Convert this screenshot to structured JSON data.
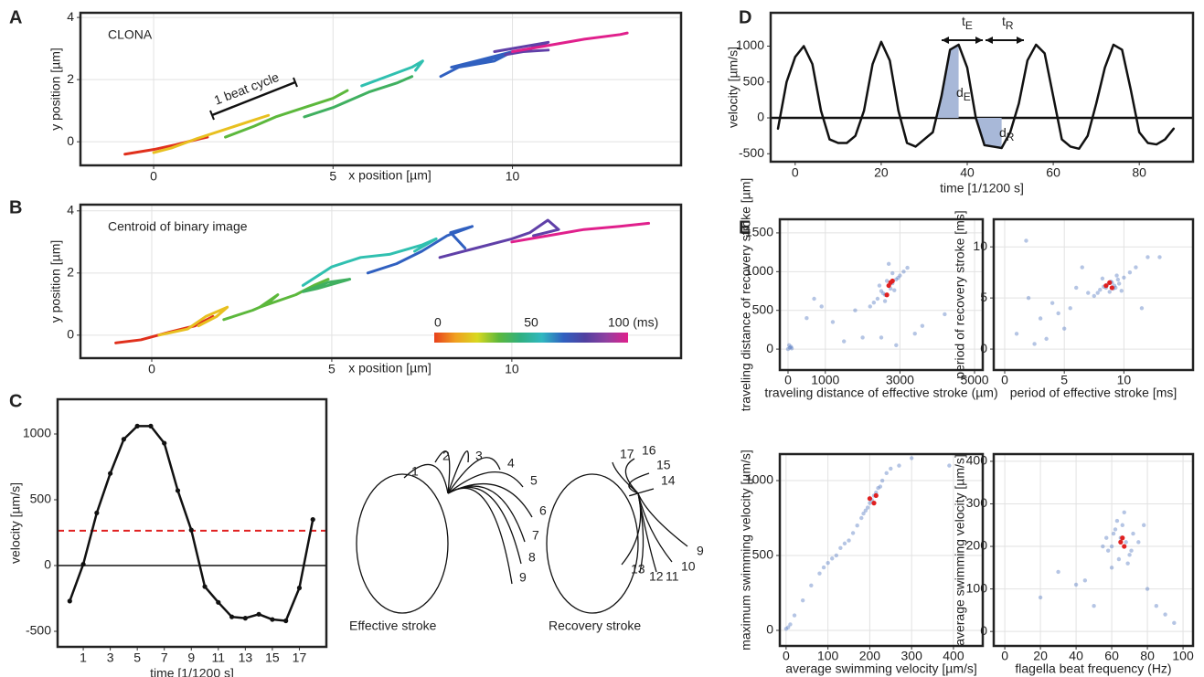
{
  "chart_data": [
    {
      "type": "line",
      "panel": "A",
      "annotation": "CLONA",
      "note": "1 beat cycle",
      "xlabel": "x position [µm]",
      "ylabel": "y position [µm]",
      "xlim": [
        -2.04,
        14.7
      ],
      "ylim": [
        -0.76,
        4.15
      ],
      "xticks": [
        0,
        5,
        10
      ],
      "yticks": [
        0,
        2,
        4
      ],
      "grid": true,
      "series": [
        {
          "color": "#e0301c",
          "x": [
            -0.8,
            0,
            0.6,
            1.3,
            1.5
          ],
          "y": [
            -0.4,
            -0.25,
            -0.1,
            0.1,
            0.15
          ]
        },
        {
          "color": "#e8c020",
          "x": [
            0,
            0.5,
            1.2,
            2.0,
            2.8,
            3.2
          ],
          "y": [
            -0.35,
            -0.2,
            0.1,
            0.4,
            0.7,
            0.85
          ]
        },
        {
          "color": "#5cb83c",
          "x": [
            2.0,
            2.8,
            3.4,
            4.2,
            5.0,
            5.4
          ],
          "y": [
            0.15,
            0.5,
            0.8,
            1.1,
            1.4,
            1.65
          ]
        },
        {
          "color": "#40b060",
          "x": [
            4.2,
            5.0,
            6.0,
            6.8,
            7.2
          ],
          "y": [
            0.8,
            1.1,
            1.6,
            1.9,
            2.1
          ]
        },
        {
          "color": "#30c0b0",
          "x": [
            5.8,
            6.5,
            7.2,
            7.5,
            7.3
          ],
          "y": [
            1.8,
            2.1,
            2.4,
            2.6,
            2.3
          ]
        },
        {
          "color": "#3060c0",
          "x": [
            8,
            8.5,
            9.5,
            10,
            9.0,
            8.3,
            8.9,
            9.8
          ],
          "y": [
            2.1,
            2.4,
            2.6,
            2.9,
            2.6,
            2.4,
            2.5,
            2.8
          ]
        },
        {
          "color": "#6040a8",
          "x": [
            9.5,
            10.5,
            11,
            10.5,
            9.8,
            10.3,
            11
          ],
          "y": [
            2.9,
            3.1,
            3.2,
            3.0,
            2.8,
            2.9,
            2.95
          ]
        },
        {
          "color": "#e0208c",
          "x": [
            10,
            11,
            12,
            13,
            13.2
          ],
          "y": [
            2.9,
            3.1,
            3.3,
            3.45,
            3.5
          ]
        }
      ]
    },
    {
      "type": "line",
      "panel": "B",
      "annotation": "Centroid of binary image",
      "xlabel": "x position [µm]",
      "ylabel": "y position [µm]",
      "xlim": [
        -1.98,
        14.7
      ],
      "ylim": [
        -0.74,
        4.2
      ],
      "xticks": [
        0,
        5,
        10
      ],
      "yticks": [
        0,
        2,
        4
      ],
      "grid": true,
      "colorbar": {
        "lim": [
          0,
          100
        ],
        "ticks": [
          0,
          50,
          {
            "value": 100,
            "label": "100 (ms)"
          }
        ],
        "colors": [
          "#e8401c",
          "#f0a020",
          "#d8d820",
          "#5cb83c",
          "#30b080",
          "#30b8c0",
          "#3060c0",
          "#5040a0",
          "#9040a0",
          "#e0208c"
        ]
      },
      "series": [
        {
          "color": "#e0301c",
          "x": [
            -1,
            -0.3,
            0.5,
            1.2,
            1.7
          ],
          "y": [
            -0.25,
            -0.15,
            0.1,
            0.3,
            0.6
          ]
        },
        {
          "color": "#e8c020",
          "x": [
            0.2,
            1,
            1.5,
            2.1,
            1.8,
            1.3
          ],
          "y": [
            0,
            0.2,
            0.6,
            0.9,
            0.6,
            0.3
          ]
        },
        {
          "color": "#5cb83c",
          "x": [
            2,
            2.8,
            3.2,
            3.5,
            3.0,
            4,
            4.5,
            4.9
          ],
          "y": [
            0.5,
            0.8,
            1.0,
            1.3,
            0.9,
            1.3,
            1.6,
            1.8
          ]
        },
        {
          "color": "#40b060",
          "x": [
            4.2,
            4.9,
            5.5,
            4.6,
            4.2
          ],
          "y": [
            1.4,
            1.7,
            1.8,
            1.5,
            1.4
          ]
        },
        {
          "color": "#30c0b0",
          "x": [
            4.2,
            5,
            5.8,
            6.6,
            7.5,
            7.9,
            7.3
          ],
          "y": [
            1.6,
            2.2,
            2.5,
            2.6,
            2.9,
            3.1,
            2.7
          ]
        },
        {
          "color": "#3060c0",
          "x": [
            6,
            6.8,
            7.5,
            8.2,
            8.9,
            8.3,
            8.7
          ],
          "y": [
            2.0,
            2.3,
            2.7,
            3.2,
            3.5,
            3.3,
            2.8
          ]
        },
        {
          "color": "#6040a8",
          "x": [
            8,
            9,
            10,
            10.5,
            11,
            11.3,
            10.6
          ],
          "y": [
            2.5,
            2.8,
            3.1,
            3.3,
            3.7,
            3.4,
            3.2
          ]
        },
        {
          "color": "#e0208c",
          "x": [
            10,
            11,
            12,
            13,
            13.8
          ],
          "y": [
            3.0,
            3.2,
            3.4,
            3.5,
            3.6
          ]
        }
      ]
    },
    {
      "type": "line",
      "panel": "C",
      "markers": true,
      "xlabel": "time [1/1200 s]",
      "ylabel": "velocity [µm/s]",
      "xlim": [
        -0.9,
        19.0
      ],
      "ylim": [
        -618,
        1264
      ],
      "xticks": [
        1,
        3,
        5,
        7,
        9,
        11,
        13,
        15,
        17
      ],
      "yticks": [
        -500,
        0,
        500,
        1000
      ],
      "grid": false,
      "reference_line": {
        "value": 265,
        "color": "#e02020"
      },
      "series": [
        {
          "color": "#111111",
          "x": [
            0,
            1,
            2,
            3,
            4,
            5,
            6,
            7,
            8,
            9,
            10,
            11,
            12,
            13,
            14,
            15,
            16,
            17,
            18
          ],
          "y": [
            -270,
            10,
            400,
            700,
            960,
            1060,
            1060,
            930,
            570,
            270,
            -160,
            -280,
            -390,
            -400,
            -370,
            -410,
            -420,
            -170,
            350
          ]
        }
      ],
      "diagram": {
        "effective_label": "Effective stroke",
        "recovery_label": "Recovery stroke",
        "effective_numbers": [
          1,
          2,
          3,
          4,
          5,
          6,
          7,
          8,
          9
        ],
        "recovery_numbers": [
          9,
          10,
          11,
          12,
          13,
          14,
          15,
          16,
          17
        ]
      }
    },
    {
      "type": "line",
      "panel": "D",
      "xlabel": "time [1/1200 s]",
      "ylabel": "velocity [µm/s]",
      "xlim": [
        -5.7,
        92.5
      ],
      "ylim": [
        -611,
        1465
      ],
      "xticks": [
        0,
        20,
        40,
        60,
        80
      ],
      "yticks": [
        -500,
        0,
        500,
        1000
      ],
      "grid": false,
      "annotations": [
        {
          "text": "t",
          "subscript": "E"
        },
        {
          "text": "t",
          "subscript": "R"
        },
        {
          "text": "d",
          "subscript": "E"
        },
        {
          "text": "d",
          "subscript": "R"
        }
      ],
      "shade_color": "#a8b8d8",
      "series": [
        {
          "color": "#111111",
          "x": [
            -4,
            -2,
            0,
            2,
            4,
            6,
            8,
            10,
            12,
            14,
            16,
            18,
            20,
            22,
            24,
            26,
            28,
            30,
            32,
            34,
            36,
            38,
            40,
            42,
            44,
            46,
            48,
            50,
            52,
            54,
            56,
            58,
            60,
            62,
            64,
            66,
            68,
            70,
            72,
            74,
            76,
            78,
            80,
            82,
            84,
            86,
            88
          ],
          "y": [
            -150,
            500,
            850,
            1000,
            750,
            100,
            -300,
            -350,
            -350,
            -250,
            100,
            750,
            1060,
            800,
            100,
            -350,
            -400,
            -300,
            -200,
            300,
            950,
            1020,
            700,
            0,
            -380,
            -400,
            -420,
            -200,
            200,
            800,
            1020,
            900,
            300,
            -300,
            -400,
            -430,
            -250,
            200,
            700,
            1020,
            950,
            400,
            -200,
            -350,
            -370,
            -300,
            -150
          ]
        }
      ]
    },
    {
      "type": "scatter",
      "panel": "E",
      "xlabel": "traveling distance of effective stroke (µm)",
      "ylabel": "traveling distance of recovery stroke [µm]",
      "xlim": [
        -220,
        5220
      ],
      "ylim": [
        -270,
        1676
      ],
      "xticks": [
        0,
        1000,
        3000,
        5000
      ],
      "yticks": [
        0,
        500,
        1000,
        1500
      ],
      "grid": true,
      "series": [
        {
          "color": "#5b7fc4",
          "x": [
            2500,
            2700,
            2900,
            2600,
            2800,
            3000,
            2400,
            2750,
            2650,
            2850,
            3100,
            2300,
            2550,
            2950,
            2700,
            2200,
            3200,
            2600,
            2800,
            2450,
            0,
            50,
            100,
            30,
            80,
            500,
            1200,
            1800,
            3600,
            4200,
            900,
            2000,
            3400,
            1500,
            2900,
            2500,
            700
          ],
          "y": [
            750,
            820,
            900,
            700,
            850,
            950,
            650,
            780,
            880,
            760,
            1000,
            600,
            720,
            920,
            1100,
            550,
            1050,
            620,
            980,
            820,
            0,
            20,
            10,
            50,
            30,
            400,
            350,
            500,
            300,
            450,
            550,
            150,
            200,
            100,
            50,
            150,
            650
          ]
        },
        {
          "color": "#e02020",
          "x": [
            2650,
            2750,
            2700,
            2800
          ],
          "y": [
            700,
            860,
            820,
            880
          ]
        }
      ]
    },
    {
      "type": "scatter",
      "xlabel": "period of effective stroke [ms]",
      "ylabel": "period of recovery stroke [ms]",
      "xlim": [
        -0.92,
        15.8
      ],
      "ylim": [
        -2.05,
        12.7
      ],
      "xticks": [
        0,
        5,
        10
      ],
      "yticks": [
        0,
        5,
        10
      ],
      "grid": true,
      "series": [
        {
          "color": "#5b7fc4",
          "x": [
            8.5,
            9,
            9.5,
            8,
            9.2,
            8.8,
            10,
            7.8,
            9.6,
            8.3,
            9.1,
            10.5,
            8.9,
            9.4,
            8.6,
            7.5,
            11,
            9.8,
            8.2,
            9.3,
            2,
            3,
            4,
            5,
            6,
            1,
            2.5,
            4.5,
            3.5,
            12,
            13,
            7,
            11.5,
            5.5,
            6.5,
            1.8
          ],
          "y": [
            6,
            6.5,
            6.8,
            5.8,
            6.2,
            5.6,
            7,
            5.5,
            6.4,
            6.1,
            5.9,
            7.5,
            6.6,
            7.2,
            6.3,
            5.2,
            8,
            5.7,
            6.9,
            6,
            5,
            3,
            4.5,
            2,
            6,
            1.5,
            0.5,
            3.5,
            1,
            9,
            9,
            5.5,
            4,
            4,
            8,
            10.6
          ]
        },
        {
          "color": "#e02020",
          "x": [
            8.5,
            8.8,
            9
          ],
          "y": [
            6.2,
            6.5,
            6
          ]
        }
      ]
    },
    {
      "type": "scatter",
      "xlabel": "average swimming velocity [µm/s]",
      "ylabel": "maximum swimming velocity [µm/s]",
      "xlim": [
        -15,
        470
      ],
      "ylim": [
        -104,
        1177
      ],
      "xticks": [
        0,
        100,
        200,
        300,
        400
      ],
      "yticks": [
        0,
        500,
        1000
      ],
      "grid": true,
      "series": [
        {
          "color": "#5b7fc4",
          "x": [
            200,
            210,
            190,
            220,
            180,
            230,
            205,
            195,
            215,
            170,
            240,
            160,
            250,
            185,
            225,
            150,
            120,
            100,
            80,
            60,
            40,
            20,
            5,
            10,
            0,
            270,
            300,
            390,
            130,
            110,
            140,
            90
          ],
          "y": [
            850,
            900,
            800,
            950,
            750,
            1000,
            870,
            820,
            920,
            700,
            1050,
            650,
            1080,
            780,
            960,
            600,
            500,
            450,
            380,
            300,
            200,
            100,
            20,
            40,
            10,
            1100,
            1150,
            1100,
            550,
            480,
            580,
            420
          ]
        },
        {
          "color": "#e02020",
          "x": [
            200,
            210,
            215
          ],
          "y": [
            880,
            850,
            900
          ]
        }
      ]
    },
    {
      "type": "scatter",
      "xlabel": "flagella beat frequency (Hz)",
      "ylabel": "average swimming velocity [µm/s]",
      "xlim": [
        -6.2,
        105.6
      ],
      "ylim": [
        -34,
        417
      ],
      "xticks": [
        0,
        20,
        40,
        60,
        80,
        100
      ],
      "yticks": [
        0,
        100,
        200,
        300,
        400
      ],
      "grid": true,
      "series": [
        {
          "color": "#5b7fc4",
          "x": [
            60,
            65,
            70,
            62,
            68,
            58,
            72,
            64,
            66,
            55,
            75,
            60,
            63,
            67,
            69,
            61,
            71,
            57,
            45,
            50,
            80,
            85,
            90,
            30,
            20,
            95,
            40,
            78
          ],
          "y": [
            200,
            220,
            180,
            240,
            210,
            190,
            230,
            170,
            250,
            200,
            210,
            150,
            260,
            280,
            160,
            230,
            190,
            220,
            120,
            60,
            100,
            60,
            40,
            140,
            80,
            20,
            110,
            250
          ]
        },
        {
          "color": "#e02020",
          "x": [
            65,
            66,
            67
          ],
          "y": [
            210,
            220,
            200
          ]
        }
      ]
    }
  ]
}
